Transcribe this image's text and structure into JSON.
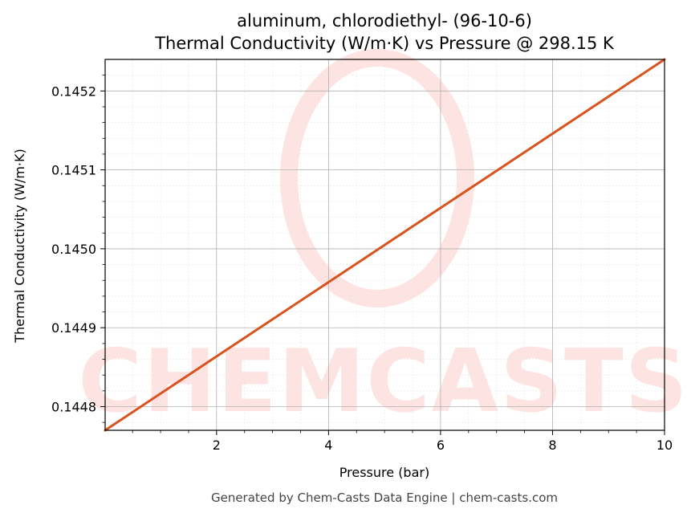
{
  "chart_data": {
    "type": "line",
    "title": "aluminum, chlorodiethyl- (96-10-6)",
    "subtitle": "Thermal Conductivity (W/m·K) vs Pressure @ 298.15 K",
    "xlabel": "Pressure (bar)",
    "ylabel": "Thermal Conductivity (W/m·K)",
    "xlim": [
      0.01,
      10
    ],
    "ylim": [
      0.14477,
      0.14524
    ],
    "xticks": [
      2,
      4,
      6,
      8,
      10
    ],
    "xtick_labels": [
      "2",
      "4",
      "6",
      "8",
      "10"
    ],
    "yticks": [
      0.1448,
      0.1449,
      0.145,
      0.1451,
      0.1452
    ],
    "ytick_labels": [
      "0.1448",
      "0.1449",
      "0.1450",
      "0.1451",
      "0.1452"
    ],
    "grid": true,
    "series": [
      {
        "color": "#d9531e",
        "x": [
          0.01,
          10
        ],
        "y": [
          0.14477,
          0.14524
        ]
      }
    ]
  },
  "watermark_text": "CHEMCASTS",
  "footer": "Generated by Chem-Casts Data Engine | chem-casts.com"
}
